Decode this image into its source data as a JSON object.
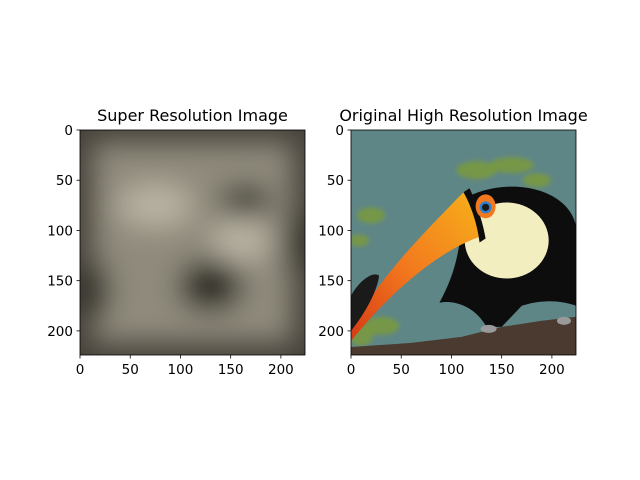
{
  "chart_data": [
    {
      "type": "image",
      "title": "Super Resolution Image",
      "xlabel": "",
      "ylabel": "",
      "xlim": [
        0,
        224
      ],
      "ylim": [
        224,
        0
      ],
      "xticks": [
        0,
        50,
        100,
        150,
        200
      ],
      "yticks": [
        0,
        50,
        100,
        150,
        200
      ],
      "content": "blurred-reconstruction",
      "colors": {
        "dominant": "#8f8a7c",
        "highlight": "#b9b3a3",
        "shadow": "#2c2923",
        "edge": "#45413a"
      }
    },
    {
      "type": "image",
      "title": "Original High Resolution Image",
      "xlabel": "",
      "ylabel": "",
      "xlim": [
        0,
        224
      ],
      "ylim": [
        224,
        0
      ],
      "xticks": [
        0,
        50,
        100,
        150,
        200
      ],
      "yticks": [
        0,
        50,
        100,
        150,
        200
      ],
      "content": "toucan-photo",
      "colors": {
        "background": "#5f8686",
        "foliage": "#7a9a3c",
        "beak_orange": "#f2781e",
        "beak_yellow": "#f7b21a",
        "beak_red": "#d63a14",
        "bill_tip": "#1a1a1a",
        "face_white": "#f2eec0",
        "eye_ring": "#2f7fd0",
        "body_black": "#0d0d0d",
        "branch": "#4a3a30"
      }
    }
  ]
}
